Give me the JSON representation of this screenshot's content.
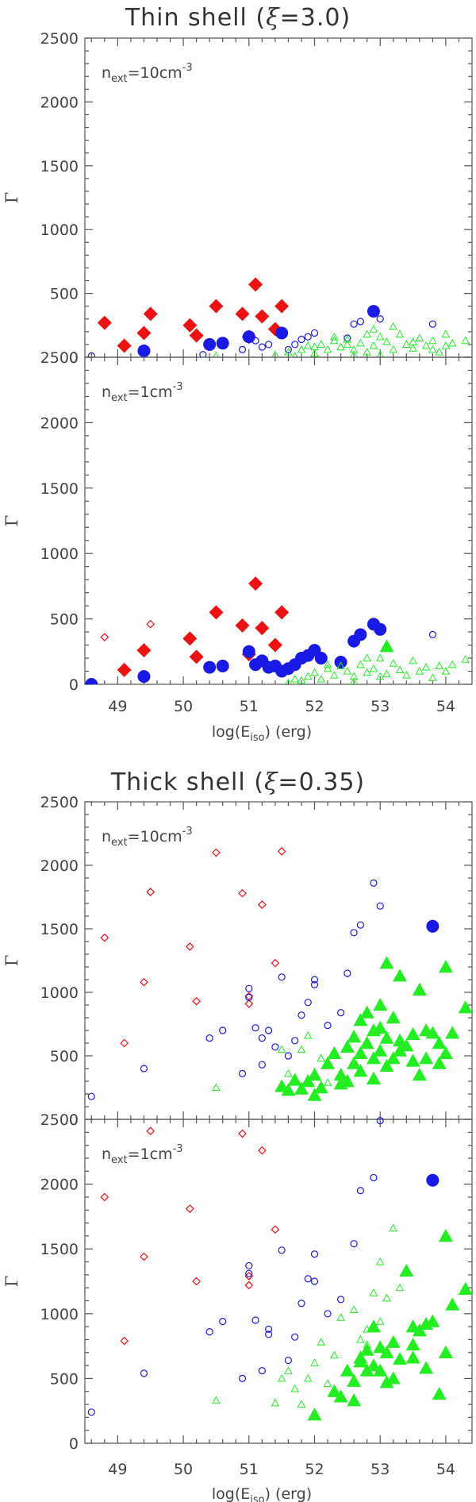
{
  "colors": {
    "red": "#ee1111",
    "blue": "#1a1ae6",
    "green": "#22ee22",
    "axis": "#555555",
    "text": "#444444"
  },
  "titles": [
    {
      "pre": "Thin shell (",
      "sym": "ξ",
      "post": "=3.0)"
    },
    {
      "pre": "Thick shell (",
      "sym": "ξ",
      "post": "=0.35)"
    }
  ],
  "x_axis": {
    "label_main": "log(E",
    "label_sub": "iso",
    "label_end": ") (erg)",
    "ticks": [
      "49",
      "50",
      "51",
      "52",
      "53",
      "54"
    ]
  },
  "y_axis": {
    "label": "Γ",
    "ticks": [
      "0",
      "500",
      "1000",
      "1500",
      "2000",
      "2500"
    ]
  },
  "chart_data": [
    {
      "type": "scatter",
      "group": "Thin shell (ξ=3.0)",
      "annotation": {
        "pre": "n",
        "sub": "ext",
        "post": "=10cm",
        "sup": "-3"
      },
      "xlim": [
        48.5,
        54.4
      ],
      "ylim": [
        0,
        2500
      ],
      "series": [
        {
          "marker": "diamond",
          "filled": true,
          "color": "red",
          "x": [
            48.8,
            49.1,
            49.4,
            49.5,
            50.1,
            50.2,
            50.5,
            50.9,
            51.0,
            51.1,
            51.2,
            51.4,
            51.5
          ],
          "y": [
            270,
            90,
            190,
            340,
            250,
            170,
            400,
            340,
            160,
            570,
            320,
            220,
            400
          ]
        },
        {
          "marker": "circle",
          "filled": true,
          "color": "blue",
          "x": [
            49.4,
            50.4,
            50.6,
            51.0,
            51.5,
            52.9
          ],
          "y": [
            50,
            100,
            110,
            160,
            190,
            360
          ]
        },
        {
          "marker": "circle",
          "filled": false,
          "color": "blue",
          "x": [
            48.6,
            50.3,
            50.9,
            51.0,
            51.1,
            51.2,
            51.3,
            51.6,
            51.7,
            51.8,
            51.9,
            52.0,
            52.5,
            52.6,
            52.7,
            53.0,
            53.8
          ],
          "y": [
            10,
            20,
            60,
            150,
            130,
            80,
            100,
            60,
            100,
            140,
            160,
            190,
            150,
            260,
            280,
            300,
            260
          ]
        },
        {
          "marker": "triangle",
          "filled": false,
          "color": "green",
          "x": [
            50.5,
            51.4,
            51.6,
            51.7,
            51.8,
            51.9,
            52.0,
            52.1,
            52.2,
            52.3,
            52.4,
            52.5,
            52.6,
            52.7,
            52.8,
            52.8,
            52.9,
            53.0,
            53.1,
            53.2,
            53.3,
            53.4,
            53.5,
            53.6,
            53.7,
            53.8,
            53.9,
            54.0,
            54.1,
            54.3,
            52.3,
            52.6,
            52.9,
            53.2,
            53.5,
            53.8,
            54.0,
            53.0,
            52.5,
            52.0
          ],
          "y": [
            10,
            20,
            40,
            10,
            60,
            90,
            30,
            100,
            60,
            130,
            80,
            140,
            60,
            110,
            180,
            40,
            90,
            160,
            120,
            60,
            180,
            100,
            70,
            150,
            90,
            130,
            40,
            180,
            110,
            130,
            160,
            20,
            220,
            240,
            120,
            60,
            90,
            20,
            100,
            80
          ]
        }
      ]
    },
    {
      "type": "scatter",
      "group": "Thin shell (ξ=3.0)",
      "annotation": {
        "pre": "n",
        "sub": "ext",
        "post": "=1cm",
        "sup": "-3"
      },
      "xlim": [
        48.5,
        54.4
      ],
      "ylim": [
        0,
        2500
      ],
      "series": [
        {
          "marker": "diamond",
          "filled": true,
          "color": "red",
          "x": [
            49.1,
            49.4,
            50.1,
            50.2,
            50.5,
            50.9,
            51.0,
            51.1,
            51.2,
            51.4,
            51.5
          ],
          "y": [
            110,
            260,
            350,
            210,
            550,
            450,
            230,
            770,
            430,
            300,
            550
          ]
        },
        {
          "marker": "diamond",
          "filled": false,
          "color": "red",
          "x": [
            48.8,
            49.5
          ],
          "y": [
            360,
            460
          ]
        },
        {
          "marker": "circle",
          "filled": true,
          "color": "blue",
          "x": [
            48.6,
            49.4,
            50.4,
            50.6,
            51.0,
            51.1,
            51.2,
            51.3,
            51.4,
            51.5,
            51.6,
            51.7,
            51.8,
            51.9,
            52.0,
            52.1,
            52.4,
            52.6,
            52.7,
            52.9,
            53.0
          ],
          "y": [
            0,
            60,
            130,
            140,
            250,
            150,
            180,
            130,
            140,
            100,
            120,
            150,
            200,
            220,
            260,
            200,
            170,
            330,
            380,
            460,
            420
          ]
        },
        {
          "marker": "circle",
          "filled": false,
          "color": "blue",
          "x": [
            53.8
          ],
          "y": [
            380
          ]
        },
        {
          "marker": "triangle",
          "filled": false,
          "color": "green",
          "x": [
            51.6,
            51.7,
            51.8,
            51.9,
            52.0,
            52.1,
            52.2,
            52.3,
            52.4,
            52.5,
            52.6,
            52.7,
            52.8,
            52.9,
            53.0,
            53.1,
            53.2,
            53.3,
            53.4,
            53.5,
            53.6,
            53.7,
            53.8,
            53.9,
            54.0,
            54.1,
            54.3,
            52.6,
            53.0,
            52.2,
            52.8
          ],
          "y": [
            10,
            40,
            30,
            60,
            90,
            40,
            120,
            70,
            140,
            100,
            60,
            150,
            90,
            120,
            200,
            80,
            160,
            110,
            70,
            180,
            100,
            130,
            50,
            140,
            100,
            150,
            190,
            20,
            60,
            150,
            200
          ]
        },
        {
          "marker": "triangle",
          "filled": true,
          "color": "green",
          "x": [
            53.1
          ],
          "y": [
            290
          ]
        }
      ]
    },
    {
      "type": "scatter",
      "group": "Thick shell (ξ=0.35)",
      "annotation": {
        "pre": "n",
        "sub": "ext",
        "post": "=10cm",
        "sup": "-3"
      },
      "xlim": [
        48.5,
        54.4
      ],
      "ylim": [
        0,
        2500
      ],
      "series": [
        {
          "marker": "diamond",
          "filled": false,
          "color": "red",
          "x": [
            48.8,
            49.1,
            49.4,
            49.5,
            50.1,
            50.2,
            50.5,
            50.9,
            51.0,
            51.0,
            51.2,
            51.4,
            51.5
          ],
          "y": [
            1430,
            600,
            1080,
            1790,
            1360,
            930,
            2100,
            1780,
            970,
            910,
            1690,
            1230,
            2110
          ]
        },
        {
          "marker": "circle",
          "filled": false,
          "color": "blue",
          "x": [
            48.6,
            49.4,
            50.4,
            50.6,
            50.9,
            51.0,
            51.0,
            51.1,
            51.2,
            51.2,
            51.3,
            51.4,
            51.5,
            51.6,
            51.7,
            51.8,
            51.9,
            52.0,
            52.0,
            52.2,
            52.4,
            52.5,
            52.6,
            52.7,
            52.9,
            53.0
          ],
          "y": [
            180,
            400,
            640,
            700,
            360,
            1030,
            960,
            720,
            430,
            640,
            700,
            570,
            1120,
            500,
            620,
            820,
            920,
            1100,
            1060,
            740,
            840,
            1150,
            1470,
            1530,
            1860,
            1680
          ]
        },
        {
          "marker": "circle",
          "filled": true,
          "color": "blue",
          "x": [
            53.8
          ],
          "y": [
            1520
          ]
        },
        {
          "marker": "triangle",
          "filled": false,
          "color": "green",
          "x": [
            50.5,
            51.5,
            51.6,
            51.7,
            51.8,
            51.9,
            52.1,
            52.2
          ],
          "y": [
            250,
            550,
            360,
            300,
            550,
            660,
            480,
            290
          ]
        },
        {
          "marker": "triangle",
          "filled": true,
          "color": "green",
          "x": [
            51.5,
            51.6,
            51.7,
            51.8,
            51.9,
            52.0,
            52.0,
            52.1,
            52.2,
            52.3,
            52.4,
            52.5,
            52.5,
            52.6,
            52.6,
            52.7,
            52.7,
            52.8,
            52.8,
            52.9,
            52.9,
            53.0,
            53.0,
            53.1,
            53.1,
            53.2,
            53.2,
            53.3,
            53.3,
            53.4,
            53.5,
            53.5,
            53.6,
            53.7,
            53.7,
            53.8,
            53.9,
            54.0,
            54.0,
            54.1,
            54.3,
            52.4,
            52.7,
            53.0,
            53.3,
            53.6,
            53.9,
            52.9,
            53.1
          ],
          "y": [
            260,
            230,
            310,
            240,
            300,
            190,
            350,
            250,
            440,
            520,
            350,
            570,
            300,
            650,
            440,
            780,
            520,
            840,
            600,
            700,
            480,
            900,
            540,
            1230,
            640,
            800,
            480,
            1130,
            620,
            580,
            670,
            460,
            1020,
            700,
            480,
            680,
            600,
            1200,
            520,
            680,
            880,
            280,
            380,
            720,
            540,
            350,
            440,
            320,
            420
          ]
        }
      ]
    },
    {
      "type": "scatter",
      "group": "Thick shell (ξ=0.35)",
      "annotation": {
        "pre": "n",
        "sub": "ext",
        "post": "=1cm",
        "sup": "-3"
      },
      "xlim": [
        48.5,
        54.4
      ],
      "ylim": [
        0,
        2500
      ],
      "series": [
        {
          "marker": "diamond",
          "filled": false,
          "color": "red",
          "x": [
            48.8,
            49.1,
            49.4,
            49.5,
            50.1,
            50.2,
            50.9,
            51.0,
            51.0,
            51.2,
            51.4
          ],
          "y": [
            1900,
            790,
            1440,
            2410,
            1810,
            1250,
            2390,
            1290,
            1220,
            2260,
            1650
          ]
        },
        {
          "marker": "circle",
          "filled": false,
          "color": "blue",
          "x": [
            48.6,
            49.4,
            50.4,
            50.6,
            50.9,
            51.0,
            51.0,
            51.1,
            51.2,
            51.3,
            51.3,
            51.5,
            51.6,
            51.7,
            51.8,
            51.9,
            52.0,
            52.0,
            52.2,
            52.4,
            52.6,
            52.7,
            52.9,
            53.0
          ],
          "y": [
            240,
            540,
            860,
            940,
            500,
            1370,
            1310,
            950,
            560,
            880,
            840,
            1490,
            640,
            820,
            1080,
            1270,
            1250,
            1460,
            1000,
            1110,
            1540,
            1950,
            2050,
            2490
          ]
        },
        {
          "marker": "circle",
          "filled": true,
          "color": "blue",
          "x": [
            53.8
          ],
          "y": [
            2030
          ]
        },
        {
          "marker": "triangle",
          "filled": false,
          "color": "green",
          "x": [
            50.5,
            51.4,
            51.5,
            51.6,
            51.7,
            51.8,
            51.9,
            52.0,
            52.1,
            52.2,
            52.3,
            52.4,
            52.5,
            52.6,
            52.7,
            52.8,
            52.9,
            53.0,
            53.1,
            53.2,
            53.3,
            53.0,
            52.8
          ],
          "y": [
            330,
            310,
            500,
            560,
            420,
            300,
            500,
            620,
            780,
            460,
            680,
            970,
            560,
            1030,
            800,
            880,
            1160,
            1400,
            1120,
            1660,
            1200,
            940,
            760
          ]
        },
        {
          "marker": "triangle",
          "filled": true,
          "color": "green",
          "x": [
            52.0,
            52.3,
            52.4,
            52.5,
            52.6,
            52.6,
            52.7,
            52.8,
            52.8,
            52.9,
            52.9,
            53.0,
            53.0,
            53.1,
            53.2,
            53.2,
            53.3,
            53.4,
            53.5,
            53.5,
            53.6,
            53.7,
            53.7,
            53.8,
            53.9,
            54.0,
            54.0,
            54.1,
            54.3,
            52.7,
            53.1,
            53.5
          ],
          "y": [
            220,
            400,
            360,
            560,
            480,
            330,
            630,
            560,
            720,
            900,
            600,
            560,
            740,
            700,
            780,
            500,
            650,
            1330,
            900,
            660,
            870,
            920,
            580,
            940,
            380,
            1600,
            700,
            1070,
            1190,
            660,
            470,
            760
          ]
        }
      ]
    }
  ]
}
